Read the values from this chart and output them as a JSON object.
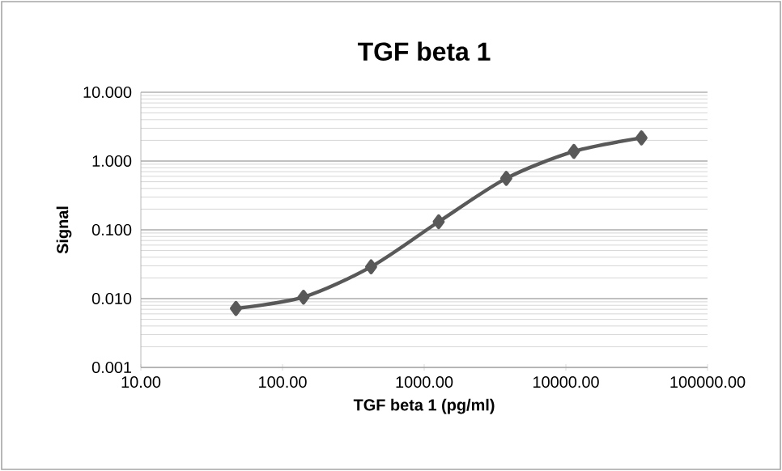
{
  "chart_data": {
    "type": "line",
    "title": "TGF beta 1",
    "xlabel": "TGF beta 1 (pg/ml)",
    "ylabel": "Signal",
    "x": [
      46.9,
      140.6,
      421.9,
      1265.6,
      3796.9,
      11390.6,
      34171.9
    ],
    "series": [
      {
        "color": "#595959",
        "values": [
          0.0072,
          0.0105,
          0.029,
          0.131,
          0.56,
          1.38,
          2.17
        ]
      }
    ],
    "log": "xy",
    "xlim": [
      10,
      100000
    ],
    "ylim": [
      0.001,
      10
    ],
    "xticks": [
      {
        "value": 10,
        "label": "10.00"
      },
      {
        "value": 100,
        "label": "100.00"
      },
      {
        "value": 1000,
        "label": "1000.00"
      },
      {
        "value": 10000,
        "label": "10000.00"
      },
      {
        "value": 100000,
        "label": "100000.00"
      }
    ],
    "yticks": [
      {
        "value": 0.001,
        "label": "0.001"
      },
      {
        "value": 0.01,
        "label": "0.010"
      },
      {
        "value": 0.1,
        "label": "0.100"
      },
      {
        "value": 1,
        "label": "1.000"
      },
      {
        "value": 10,
        "label": "10.000"
      }
    ],
    "grid": "y",
    "marker": "diamond",
    "line_style": "solid"
  }
}
